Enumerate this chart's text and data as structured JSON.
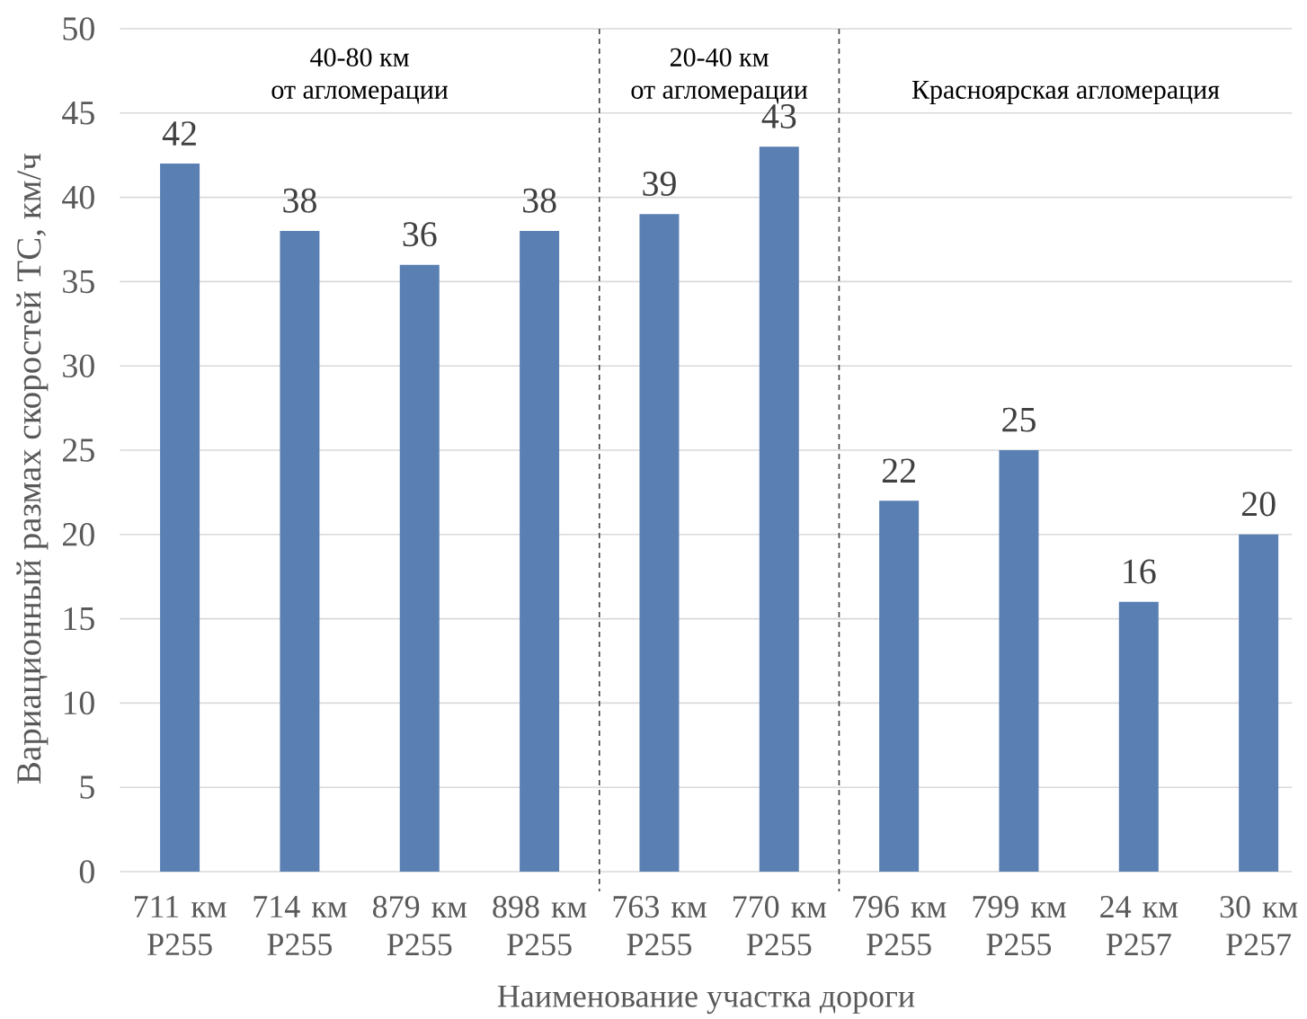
{
  "chart_data": {
    "type": "bar",
    "xlabel": "Наименование участка дороги",
    "ylabel": "Вариационный размах скоростей ТС, км/ч",
    "categories": [
      "711 км Р255",
      "714 км Р255",
      "879 км Р255",
      "898 км Р255",
      "763 км Р255",
      "770 км Р255",
      "796 км Р255",
      "799 км Р255",
      "24 км Р257",
      "30 км Р257"
    ],
    "values": [
      42,
      38,
      36,
      38,
      39,
      43,
      22,
      25,
      16,
      20
    ],
    "color": "#5a7fb2",
    "ylim": [
      0,
      50
    ],
    "yticks": [
      0,
      5,
      10,
      15,
      20,
      25,
      30,
      35,
      40,
      45,
      50
    ],
    "grid": "y",
    "data_labels": true,
    "annotations": [
      "40-80 км от агломерации",
      "20-40 км от агломерации",
      "Красноярская агломерация"
    ]
  }
}
